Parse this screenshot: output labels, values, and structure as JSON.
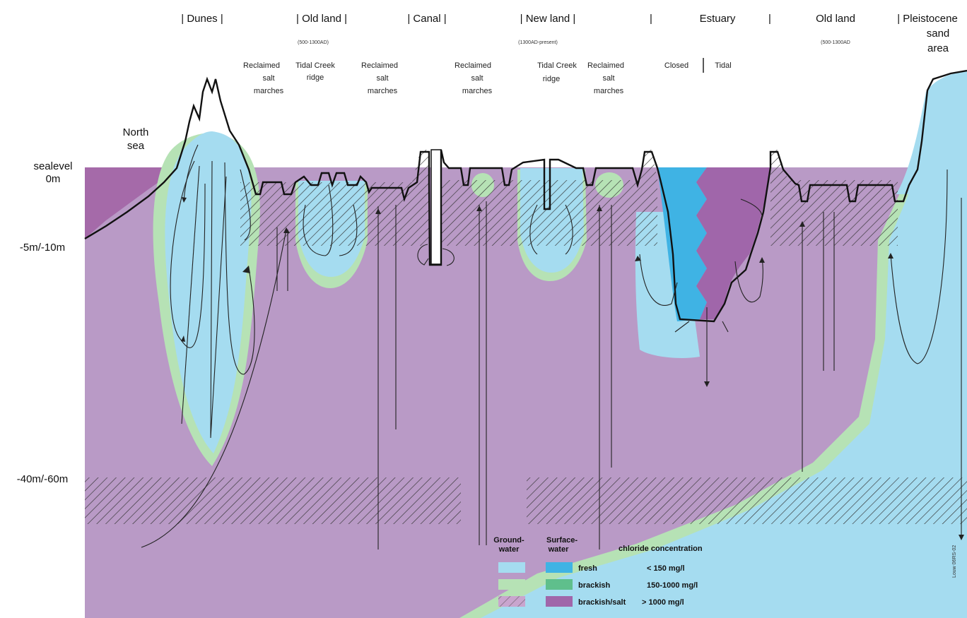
{
  "regions": {
    "dunes": "| Dunes |",
    "old_land_left": "| Old land |",
    "canal": "| Canal |",
    "new_land": "| New land |",
    "estuary": "Estuary",
    "old_land_right": "Old land",
    "pleistocene": [
      "| Pleistocene",
      "sand",
      "area"
    ]
  },
  "dates": {
    "old_land_left": "(500-1300AD)",
    "new_land": "(1300AD-present)",
    "old_land_right": "(500-1300AD"
  },
  "sublabels": {
    "reclaimed_1": [
      "Reclaimed",
      "salt",
      "marches"
    ],
    "tidal_ridge_1": [
      "Tidal Creek",
      "ridge"
    ],
    "reclaimed_2": [
      "Reclaimed",
      "salt",
      "marches"
    ],
    "reclaimed_3": [
      "Reclaimed",
      "salt",
      "marches"
    ],
    "tidal_ridge_2": [
      "Tidal Creek",
      "ridge"
    ],
    "reclaimed_4": [
      "Reclaimed",
      "salt",
      "marches"
    ],
    "estuary_closed": "Closed",
    "estuary_tidal": "Tidal"
  },
  "north_sea": [
    "North",
    "sea"
  ],
  "depths": {
    "sealevel": [
      "sealevel",
      "0m"
    ],
    "shallow": "-5m/-10m",
    "deep": "-40m/-60m"
  },
  "legend": {
    "groundwater_header": [
      "Ground-",
      "water"
    ],
    "surfacewater_header": [
      "Surface-",
      "water"
    ],
    "chloride_header": "chloride concentration",
    "rows": [
      {
        "label": "fresh",
        "range": "< 150 mg/l",
        "gw_color": "#a5dcf0",
        "sw_color": "#3fb3e4"
      },
      {
        "label": "brackish",
        "range": "150-1000 mg/l",
        "gw_color": "#b6e2b5",
        "sw_color": "#5fbf8c"
      },
      {
        "label": "brackish/salt",
        "range": "> 1000 mg/l",
        "gw_color": "#c9a5ce",
        "sw_color": "#a066aa"
      }
    ]
  },
  "credit": "Louw 06RS-02",
  "colors": {
    "saline_gw": "#b99ac6",
    "fresh_gw": "#a5dcf0",
    "brackish_gw": "#b6e2b5",
    "fresh_sw": "#3fb3e4",
    "salt_sw": "#a066aa",
    "sea": "#a56aa9"
  }
}
